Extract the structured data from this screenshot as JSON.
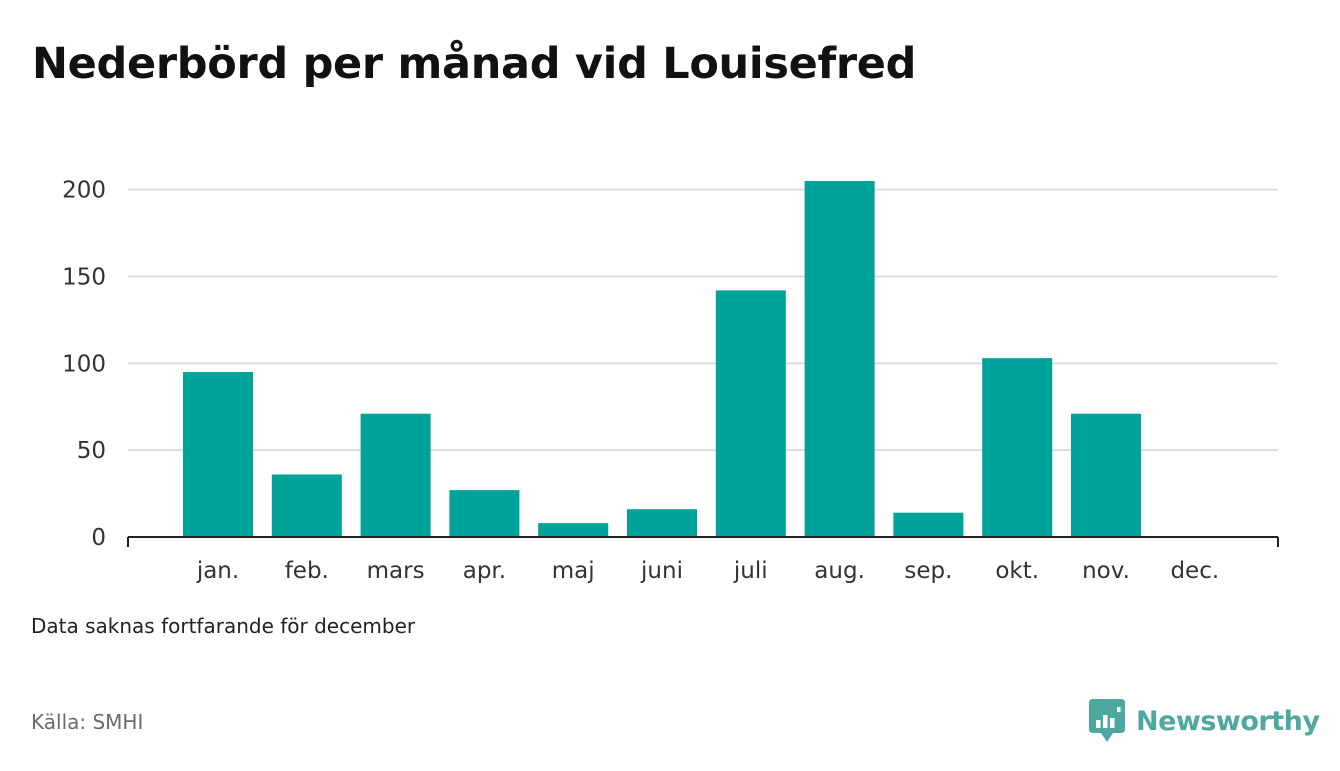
{
  "title": "Nederbörd per månad vid Louisefred",
  "note": "Data saknas fortfarande för december",
  "source": "Källa: SMHI",
  "brand": {
    "name": "Newsworthy",
    "color": "#4fa8a0",
    "icon": "newsworthy-logo-icon"
  },
  "chart_data": {
    "type": "bar",
    "categories": [
      "jan.",
      "feb.",
      "mars",
      "apr.",
      "maj",
      "juni",
      "juli",
      "aug.",
      "sep.",
      "okt.",
      "nov.",
      "dec."
    ],
    "values": [
      95,
      36,
      71,
      27,
      8,
      16,
      142,
      205,
      14,
      103,
      71,
      null
    ],
    "title": "Nederbörd per månad vid Louisefred",
    "xlabel": "",
    "ylabel": "",
    "ylim": [
      0,
      205
    ],
    "yticks": [
      0,
      50,
      100,
      150,
      200
    ],
    "grid": true,
    "bar_color": "#00a399",
    "gridline_color": "#dddddd",
    "axis_color": "#222222"
  }
}
